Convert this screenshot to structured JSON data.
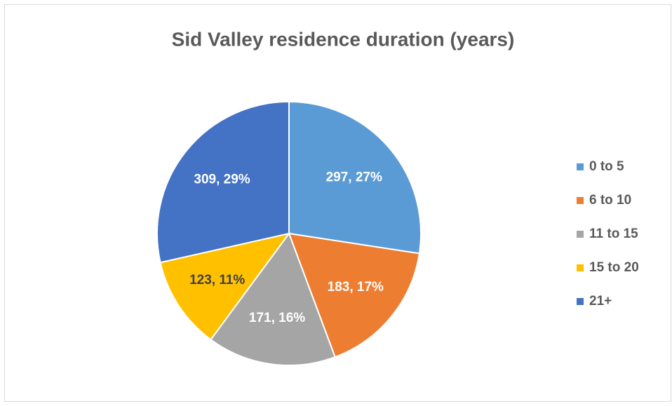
{
  "chart_data": {
    "type": "pie",
    "title": "Sid Valley residence duration (years)",
    "categories": [
      "0 to 5",
      "6 to 10",
      "11 to 15",
      "15 to 20",
      "21+"
    ],
    "values": [
      297,
      183,
      171,
      123,
      309
    ],
    "value_labels": [
      "297, 27%",
      "183, 17%",
      "171, 16%",
      "123, 11%",
      "309, 29%"
    ],
    "colors": [
      "#5b9bd5",
      "#ed7d31",
      "#a5a5a5",
      "#ffc000",
      "#4472c4"
    ],
    "legend": "right"
  }
}
